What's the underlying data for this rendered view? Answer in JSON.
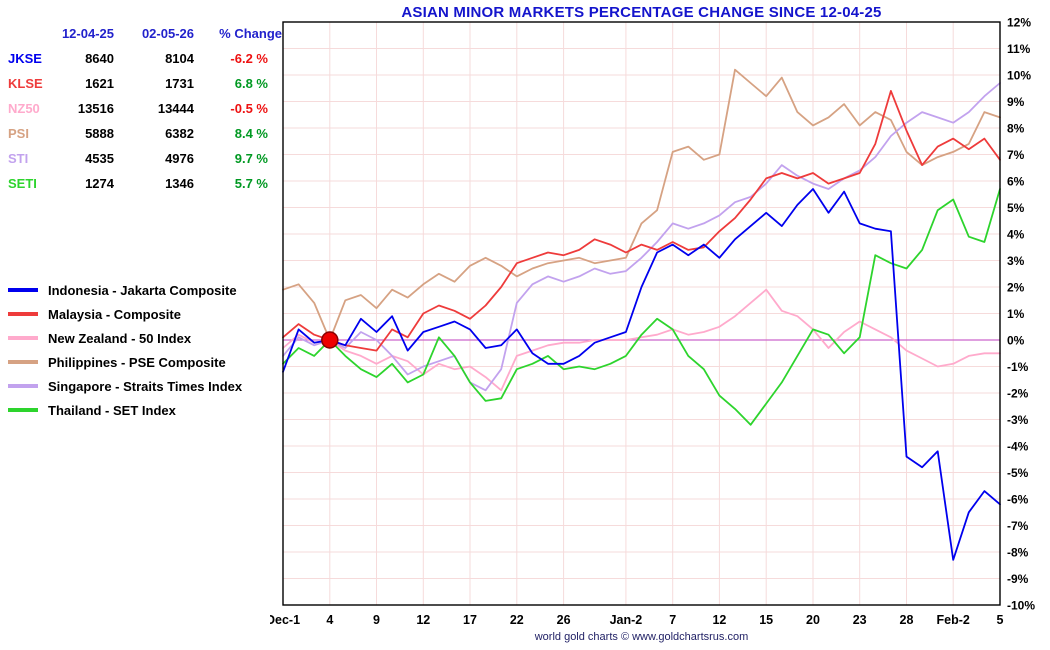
{
  "title": "ASIAN MINOR MARKETS PERCENTAGE CHANGE SINCE 12-04-25",
  "footer": "world gold charts © www.goldchartsrus.com",
  "colors": {
    "title": "#1414cc",
    "table_header": "#2222cc",
    "value_text": "#000000",
    "negative": "#ee1111",
    "positive": "#009922",
    "grid": "#f6dbdb",
    "zero_line": "#cc66cc",
    "plot_border": "#000000",
    "axis_text": "#000000",
    "marker_fill": "#ee0000",
    "marker_stroke": "#880000",
    "footer_text": "#222266",
    "background": "#ffffff"
  },
  "stats": {
    "headers": [
      "12-04-25",
      "02-05-26",
      "% Change"
    ],
    "rows": [
      {
        "symbol": "JKSE",
        "start": "8640",
        "end": "8104",
        "change": "-6.2 %"
      },
      {
        "symbol": "KLSE",
        "start": "1621",
        "end": "1731",
        "change": "6.8 %"
      },
      {
        "symbol": "NZ50",
        "start": "13516",
        "end": "13444",
        "change": "-0.5 %"
      },
      {
        "symbol": "PSI",
        "start": "5888",
        "end": "6382",
        "change": "8.4 %"
      },
      {
        "symbol": "STI",
        "start": "4535",
        "end": "4976",
        "change": "9.7 %"
      },
      {
        "symbol": "SETI",
        "start": "1274",
        "end": "1346",
        "change": "5.7 %"
      }
    ]
  },
  "chart_data": {
    "type": "line",
    "title": "ASIAN MINOR MARKETS PERCENTAGE CHANGE SINCE 12-04-25",
    "xlabel": "",
    "ylabel": "",
    "y_unit": "%",
    "ylim": [
      -10,
      12
    ],
    "y_tick_step": 1,
    "grid": true,
    "legend_position": "left",
    "baseline_marker": {
      "x_index": 3,
      "y": 0
    },
    "x_dates": [
      "Dec-1",
      "Dec-2",
      "Dec-3",
      "Dec-4",
      "Dec-5",
      "Dec-8",
      "Dec-9",
      "Dec-10",
      "Dec-11",
      "Dec-12",
      "Dec-15",
      "Dec-16",
      "Dec-17",
      "Dec-18",
      "Dec-19",
      "Dec-22",
      "Dec-23",
      "Dec-24",
      "Dec-26",
      "Dec-29",
      "Dec-30",
      "Dec-31",
      "Jan-2",
      "Jan-5",
      "Jan-6",
      "Jan-7",
      "Jan-8",
      "Jan-9",
      "Jan-12",
      "Jan-13",
      "Jan-14",
      "Jan-15",
      "Jan-16",
      "Jan-19",
      "Jan-20",
      "Jan-21",
      "Jan-22",
      "Jan-23",
      "Jan-26",
      "Jan-27",
      "Jan-28",
      "Jan-29",
      "Jan-30",
      "Feb-2",
      "Feb-3",
      "Feb-4",
      "Feb-5"
    ],
    "x_ticks": [
      {
        "index": 0,
        "label": "Dec-1"
      },
      {
        "index": 3,
        "label": "4"
      },
      {
        "index": 6,
        "label": "9"
      },
      {
        "index": 9,
        "label": "12"
      },
      {
        "index": 12,
        "label": "17"
      },
      {
        "index": 15,
        "label": "22"
      },
      {
        "index": 18,
        "label": "26"
      },
      {
        "index": 22,
        "label": "Jan-2"
      },
      {
        "index": 25,
        "label": "7"
      },
      {
        "index": 28,
        "label": "12"
      },
      {
        "index": 31,
        "label": "15"
      },
      {
        "index": 34,
        "label": "20"
      },
      {
        "index": 37,
        "label": "23"
      },
      {
        "index": 40,
        "label": "28"
      },
      {
        "index": 43,
        "label": "Feb-2"
      },
      {
        "index": 46,
        "label": "5"
      }
    ],
    "series": [
      {
        "name": "JKSE",
        "label": "Indonesia - Jakarta Composite",
        "color": "#0000ee",
        "values": [
          -1.2,
          0.4,
          -0.1,
          0.0,
          -0.2,
          0.8,
          0.3,
          0.9,
          -0.4,
          0.3,
          0.5,
          0.7,
          0.4,
          -0.3,
          -0.2,
          0.4,
          -0.5,
          -0.9,
          -0.9,
          -0.6,
          -0.1,
          0.1,
          0.3,
          2.0,
          3.3,
          3.6,
          3.2,
          3.6,
          3.1,
          3.8,
          4.3,
          4.8,
          4.3,
          5.1,
          5.7,
          4.8,
          5.6,
          4.4,
          4.2,
          4.1,
          -4.4,
          -4.8,
          -4.2,
          -8.3,
          -6.5,
          -5.7,
          -6.2
        ]
      },
      {
        "name": "KLSE",
        "label": "Malaysia - Composite",
        "color": "#ee3b3b",
        "values": [
          0.1,
          0.6,
          0.2,
          0.0,
          -0.2,
          -0.3,
          -0.4,
          0.4,
          0.1,
          1.0,
          1.3,
          1.1,
          0.8,
          1.3,
          2.0,
          2.9,
          3.1,
          3.3,
          3.2,
          3.4,
          3.8,
          3.6,
          3.3,
          3.6,
          3.4,
          3.7,
          3.4,
          3.5,
          4.1,
          4.6,
          5.3,
          6.1,
          6.3,
          6.1,
          6.3,
          5.9,
          6.1,
          6.3,
          7.4,
          9.4,
          7.9,
          6.6,
          7.3,
          7.6,
          7.2,
          7.6,
          6.8
        ]
      },
      {
        "name": "NZ50",
        "label": "New Zealand - 50 Index",
        "color": "#ffaacc",
        "values": [
          -0.3,
          0.2,
          -0.1,
          0.0,
          -0.4,
          -0.6,
          -0.9,
          -0.6,
          -0.8,
          -1.3,
          -0.9,
          -1.1,
          -1.0,
          -1.4,
          -1.9,
          -0.6,
          -0.4,
          -0.2,
          -0.1,
          -0.1,
          0.0,
          0.0,
          0.0,
          0.1,
          0.2,
          0.4,
          0.2,
          0.3,
          0.5,
          0.9,
          1.4,
          1.9,
          1.1,
          0.9,
          0.4,
          -0.3,
          0.3,
          0.7,
          0.4,
          0.1,
          -0.4,
          -0.7,
          -1.0,
          -0.9,
          -0.6,
          -0.5,
          -0.5
        ]
      },
      {
        "name": "PSI",
        "label": "Philippines - PSE Composite",
        "color": "#d6a283",
        "values": [
          1.9,
          2.1,
          1.4,
          0.0,
          1.5,
          1.7,
          1.2,
          1.9,
          1.6,
          2.1,
          2.5,
          2.2,
          2.8,
          3.1,
          2.8,
          2.4,
          2.7,
          2.9,
          3.0,
          3.1,
          2.9,
          3.0,
          3.1,
          4.4,
          4.9,
          7.1,
          7.3,
          6.8,
          7.0,
          10.2,
          9.7,
          9.2,
          9.9,
          8.6,
          8.1,
          8.4,
          8.9,
          8.1,
          8.6,
          8.3,
          7.1,
          6.6,
          6.9,
          7.1,
          7.4,
          8.6,
          8.4
        ]
      },
      {
        "name": "STI",
        "label": "Singapore - Straits Times Index",
        "color": "#c2a2ee",
        "values": [
          -0.6,
          0.1,
          -0.2,
          0.0,
          -0.3,
          0.3,
          0.0,
          -0.6,
          -1.3,
          -1.0,
          -0.8,
          -0.6,
          -1.6,
          -1.9,
          -1.1,
          1.4,
          2.1,
          2.4,
          2.2,
          2.4,
          2.7,
          2.5,
          2.6,
          3.1,
          3.7,
          4.4,
          4.2,
          4.4,
          4.7,
          5.2,
          5.4,
          5.9,
          6.6,
          6.2,
          5.9,
          5.7,
          6.1,
          6.4,
          6.9,
          7.7,
          8.2,
          8.6,
          8.4,
          8.2,
          8.6,
          9.2,
          9.7
        ]
      },
      {
        "name": "SETI",
        "label": "Thailand - SET Index",
        "color": "#2dd42d",
        "values": [
          -0.9,
          -0.3,
          -0.6,
          0.0,
          -0.6,
          -1.1,
          -1.4,
          -0.9,
          -1.6,
          -1.3,
          0.1,
          -0.6,
          -1.6,
          -2.3,
          -2.2,
          -1.1,
          -0.9,
          -0.6,
          -1.1,
          -1.0,
          -1.1,
          -0.9,
          -0.6,
          0.2,
          0.8,
          0.4,
          -0.6,
          -1.1,
          -2.1,
          -2.6,
          -3.2,
          -2.4,
          -1.6,
          -0.6,
          0.4,
          0.2,
          -0.5,
          0.1,
          3.2,
          2.9,
          2.7,
          3.4,
          4.9,
          5.3,
          3.9,
          3.7,
          5.7
        ]
      }
    ]
  }
}
